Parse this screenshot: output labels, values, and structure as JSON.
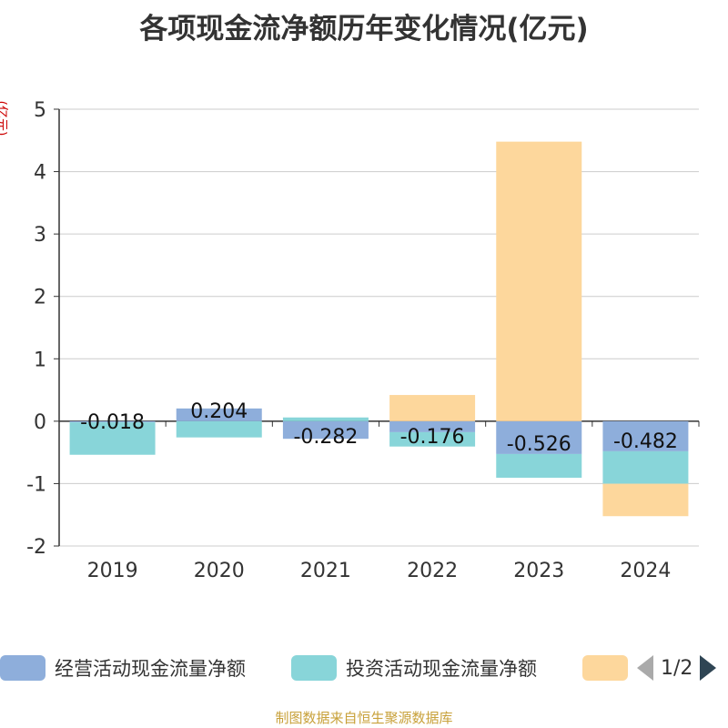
{
  "title": "各项现金流净额历年变化情况(亿元)",
  "y_unit": "(亿元)",
  "source": "制图数据来自恒生聚源数据库",
  "legend": {
    "items": [
      {
        "label": "经营活动现金流量净额",
        "color": "#8eaedb"
      },
      {
        "label": "投资活动现金流量净额",
        "color": "#88d5d9"
      },
      {
        "label": "",
        "color": "#fdd79c"
      }
    ],
    "pager": "1/2"
  },
  "chart_data": {
    "type": "bar",
    "stacked": true,
    "categories": [
      "2019",
      "2020",
      "2021",
      "2022",
      "2023",
      "2024"
    ],
    "ylim": [
      -2,
      5
    ],
    "yticks": [
      5,
      4,
      3,
      2,
      1,
      0,
      -1,
      -2
    ],
    "grid": true,
    "legend_position": "bottom",
    "series": [
      {
        "name": "经营活动现金流量净额",
        "color": "#8eaedb",
        "values": [
          -0.018,
          0.204,
          -0.282,
          -0.176,
          -0.526,
          -0.482
        ]
      },
      {
        "name": "投资活动现金流量净额",
        "color": "#88d5d9",
        "values": [
          -0.52,
          -0.26,
          0.06,
          -0.23,
          -0.38,
          -0.52
        ]
      },
      {
        "color": "#fdd79c",
        "values": [
          0.0,
          0.0,
          0.0,
          0.42,
          4.48,
          -0.52
        ]
      }
    ],
    "data_labels": [
      "-0.018",
      "0.204",
      "-0.282",
      "-0.176",
      "-0.526",
      "-0.482"
    ]
  }
}
